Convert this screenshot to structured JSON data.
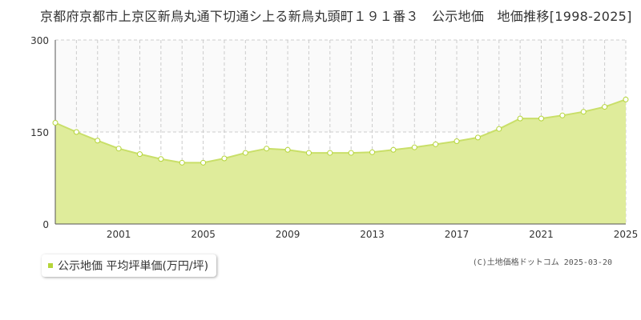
{
  "title": "京都府京都市上京区新鳥丸通下切通シ上る新鳥丸頭町１９１番３　公示地価　地価推移[1998-2025]",
  "chart_data": {
    "type": "area",
    "x": [
      1998,
      1999,
      2000,
      2001,
      2002,
      2003,
      2004,
      2005,
      2006,
      2007,
      2008,
      2009,
      2010,
      2011,
      2012,
      2013,
      2014,
      2015,
      2016,
      2017,
      2018,
      2019,
      2020,
      2021,
      2022,
      2023,
      2024,
      2025
    ],
    "series": [
      {
        "name": "公示地価 平均坪単価(万円/坪)",
        "values": [
          165,
          150,
          136,
          123,
          114,
          106,
          100,
          100,
          107,
          116,
          123,
          121,
          116,
          116,
          116,
          117,
          121,
          125,
          130,
          135,
          141,
          155,
          172,
          172,
          177,
          183,
          191,
          203
        ]
      }
    ],
    "ylim": [
      0,
      300
    ],
    "xlim": [
      1998,
      2025
    ],
    "yticks": [
      "0",
      "150",
      "300"
    ],
    "xticks": [
      "2001",
      "2005",
      "2009",
      "2013",
      "2017",
      "2021",
      "2025"
    ],
    "grid": true,
    "legend": "bottom-left"
  },
  "legend": {
    "label": "公示地価 平均坪単価(万円/坪)",
    "color": "#b5d53a"
  },
  "credit": "(C)土地価格ドットコム 2025-03-20",
  "colors": {
    "fill": "#dfec9b",
    "line": "#c9df69",
    "marker_stroke": "#b5d53a",
    "grid": "#cccccc",
    "axis": "#555555"
  }
}
